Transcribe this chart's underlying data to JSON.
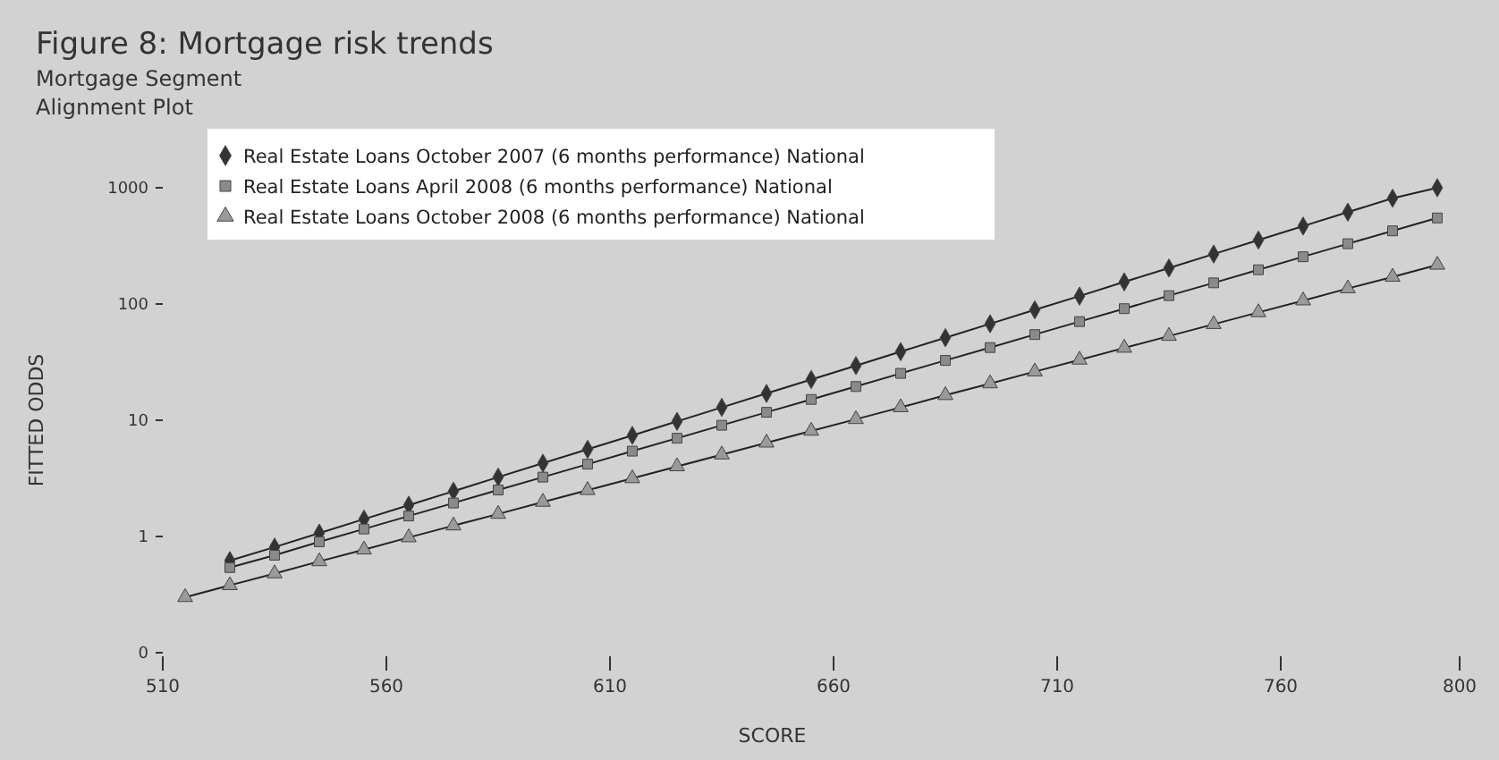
{
  "chart_data": {
    "type": "line",
    "title": "Figure 8: Mortgage risk trends",
    "subtitle": "Mortgage Segment",
    "annotations": [
      "Alignment Plot"
    ],
    "xlabel": "SCORE",
    "ylabel": "FITTED ODDS",
    "log": "y",
    "grid": false,
    "legend": "top left",
    "line_style": "solid",
    "xlim": [
      510,
      800
    ],
    "xticks": [
      510,
      560,
      610,
      660,
      710,
      760,
      800
    ],
    "ylim": [
      0.1,
      1000
    ],
    "yticks": [
      {
        "value": 0.1,
        "label": "0"
      },
      1,
      10,
      100,
      1000
    ],
    "series": [
      {
        "name": "Real Estate Loans October 2007 (6 months performance) National",
        "color": "#333333",
        "marker": "diamond",
        "x": [
          525,
          535,
          545,
          555,
          565,
          575,
          585,
          595,
          605,
          615,
          625,
          635,
          645,
          655,
          665,
          675,
          685,
          695,
          705,
          715,
          725,
          735,
          745,
          755,
          765,
          775,
          785,
          795
        ],
        "values": [
          0.62,
          0.81,
          1.07,
          1.41,
          1.86,
          2.45,
          3.24,
          4.27,
          5.62,
          7.41,
          9.77,
          12.9,
          17.0,
          22.4,
          29.5,
          38.9,
          51.3,
          67.6,
          89.1,
          117,
          155,
          204,
          269,
          355,
          468,
          617,
          813,
          1000
        ]
      },
      {
        "name": "Real Estate Loans April 2008 (6 months performance) National",
        "color": "#8a8a8a",
        "marker": "square",
        "x": [
          525,
          535,
          545,
          555,
          565,
          575,
          585,
          595,
          605,
          615,
          625,
          635,
          645,
          655,
          665,
          675,
          685,
          695,
          705,
          715,
          725,
          735,
          745,
          755,
          765,
          775,
          785,
          795
        ],
        "values": [
          0.54,
          0.69,
          0.9,
          1.16,
          1.5,
          1.94,
          2.51,
          3.24,
          4.19,
          5.42,
          7.0,
          9.05,
          11.7,
          15.1,
          19.5,
          25.3,
          32.7,
          42.2,
          54.6,
          70.6,
          91.2,
          118,
          152,
          197,
          255,
          330,
          426,
          550
        ]
      },
      {
        "name": "Real Estate Loans October 2008 (6 months performance) National",
        "color": "#9a9a9a",
        "marker": "triangle",
        "x": [
          515,
          525,
          535,
          545,
          555,
          565,
          575,
          585,
          595,
          605,
          615,
          625,
          635,
          645,
          655,
          665,
          675,
          685,
          695,
          705,
          715,
          725,
          735,
          745,
          755,
          765,
          775,
          785,
          795
        ],
        "values": [
          0.3,
          0.38,
          0.48,
          0.61,
          0.77,
          0.98,
          1.24,
          1.56,
          1.98,
          2.5,
          3.16,
          4.0,
          5.06,
          6.4,
          8.09,
          10.2,
          12.9,
          16.4,
          20.7,
          26.2,
          33.1,
          41.9,
          53.0,
          67.0,
          84.7,
          107,
          136,
          171,
          217
        ]
      }
    ]
  }
}
